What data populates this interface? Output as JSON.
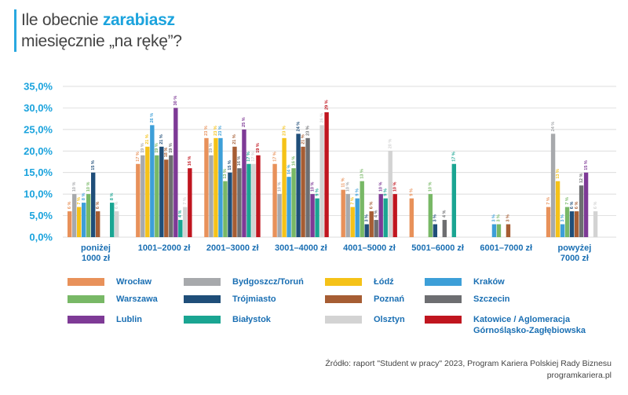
{
  "title": {
    "line1_prefix": "Ile obecnie ",
    "line1_highlight": "zarabiasz",
    "line2": "miesięcznie „na rękę”?"
  },
  "source": {
    "line1": "Źródło: raport \"Student w pracy\" 2023, Program Kariera Polskiej Rady Biznesu",
    "line2": "programkariera.pl"
  },
  "colors": {
    "accent": "#1ba3dd",
    "axis_text": "#1ba3dd",
    "category_text": "#1a6fb3",
    "grid": "#d0d0d0"
  },
  "chart_data": {
    "type": "bar",
    "title": "Ile obecnie zarabiasz miesięcznie „na rękę”?",
    "ylim": [
      0,
      35
    ],
    "yticks": [
      "0,0%",
      "5,0%",
      "10,0%",
      "15,0%",
      "20,0%",
      "25,0%",
      "30,0%",
      "35,0%"
    ],
    "grid": true,
    "legend_position": "bottom",
    "categories": [
      "poniżej\n1000 zł",
      "1001–2000 zł",
      "2001–3000 zł",
      "3001–4000 zł",
      "4001–5000 zł",
      "5001–6000 zł",
      "6001–7000 zł",
      "powyżej\n7000 zł"
    ],
    "series": [
      {
        "name": "Wrocław",
        "color": "#e8915a",
        "values": [
          6,
          17,
          23,
          17,
          11,
          9,
          null,
          7
        ]
      },
      {
        "name": "Bydgoszcz/Toruń",
        "color": "#a7a9ac",
        "values": [
          10,
          19,
          19,
          10,
          10,
          null,
          null,
          24
        ]
      },
      {
        "name": "Łódź",
        "color": "#f5c218",
        "values": [
          7,
          21,
          23,
          23,
          7,
          null,
          null,
          13
        ]
      },
      {
        "name": "Kraków",
        "color": "#3d9fd8",
        "values": [
          8,
          26,
          23,
          14,
          9,
          null,
          3,
          3
        ]
      },
      {
        "name": "Warszawa",
        "color": "#78b866",
        "values": [
          10,
          19,
          13,
          16,
          13,
          10,
          3,
          7
        ]
      },
      {
        "name": "Trójmiasto",
        "color": "#1f4e79",
        "values": [
          15,
          21,
          15,
          24,
          3,
          3,
          null,
          6
        ]
      },
      {
        "name": "Poznań",
        "color": "#a65d33",
        "values": [
          6,
          18,
          21,
          21,
          6,
          null,
          3,
          6
        ]
      },
      {
        "name": "Szczecin",
        "color": "#6d6e71",
        "values": [
          null,
          19,
          16,
          23,
          4,
          4,
          null,
          12
        ]
      },
      {
        "name": "Lublin",
        "color": "#7e3a96",
        "values": [
          null,
          30,
          25,
          10,
          10,
          null,
          null,
          15
        ]
      },
      {
        "name": "Białystok",
        "color": "#1aa592",
        "values": [
          8,
          4,
          17,
          9,
          9,
          17,
          null,
          null
        ]
      },
      {
        "name": "Olsztyn",
        "color": "#d3d3d3",
        "values": [
          6,
          7,
          17,
          26,
          20,
          null,
          null,
          6
        ]
      },
      {
        "name": "Katowice / Aglomeracja\nGórnośląsko-Zagłębiowska",
        "color": "#c0151f",
        "values": [
          null,
          16,
          19,
          29,
          10,
          null,
          null,
          null
        ]
      }
    ]
  }
}
